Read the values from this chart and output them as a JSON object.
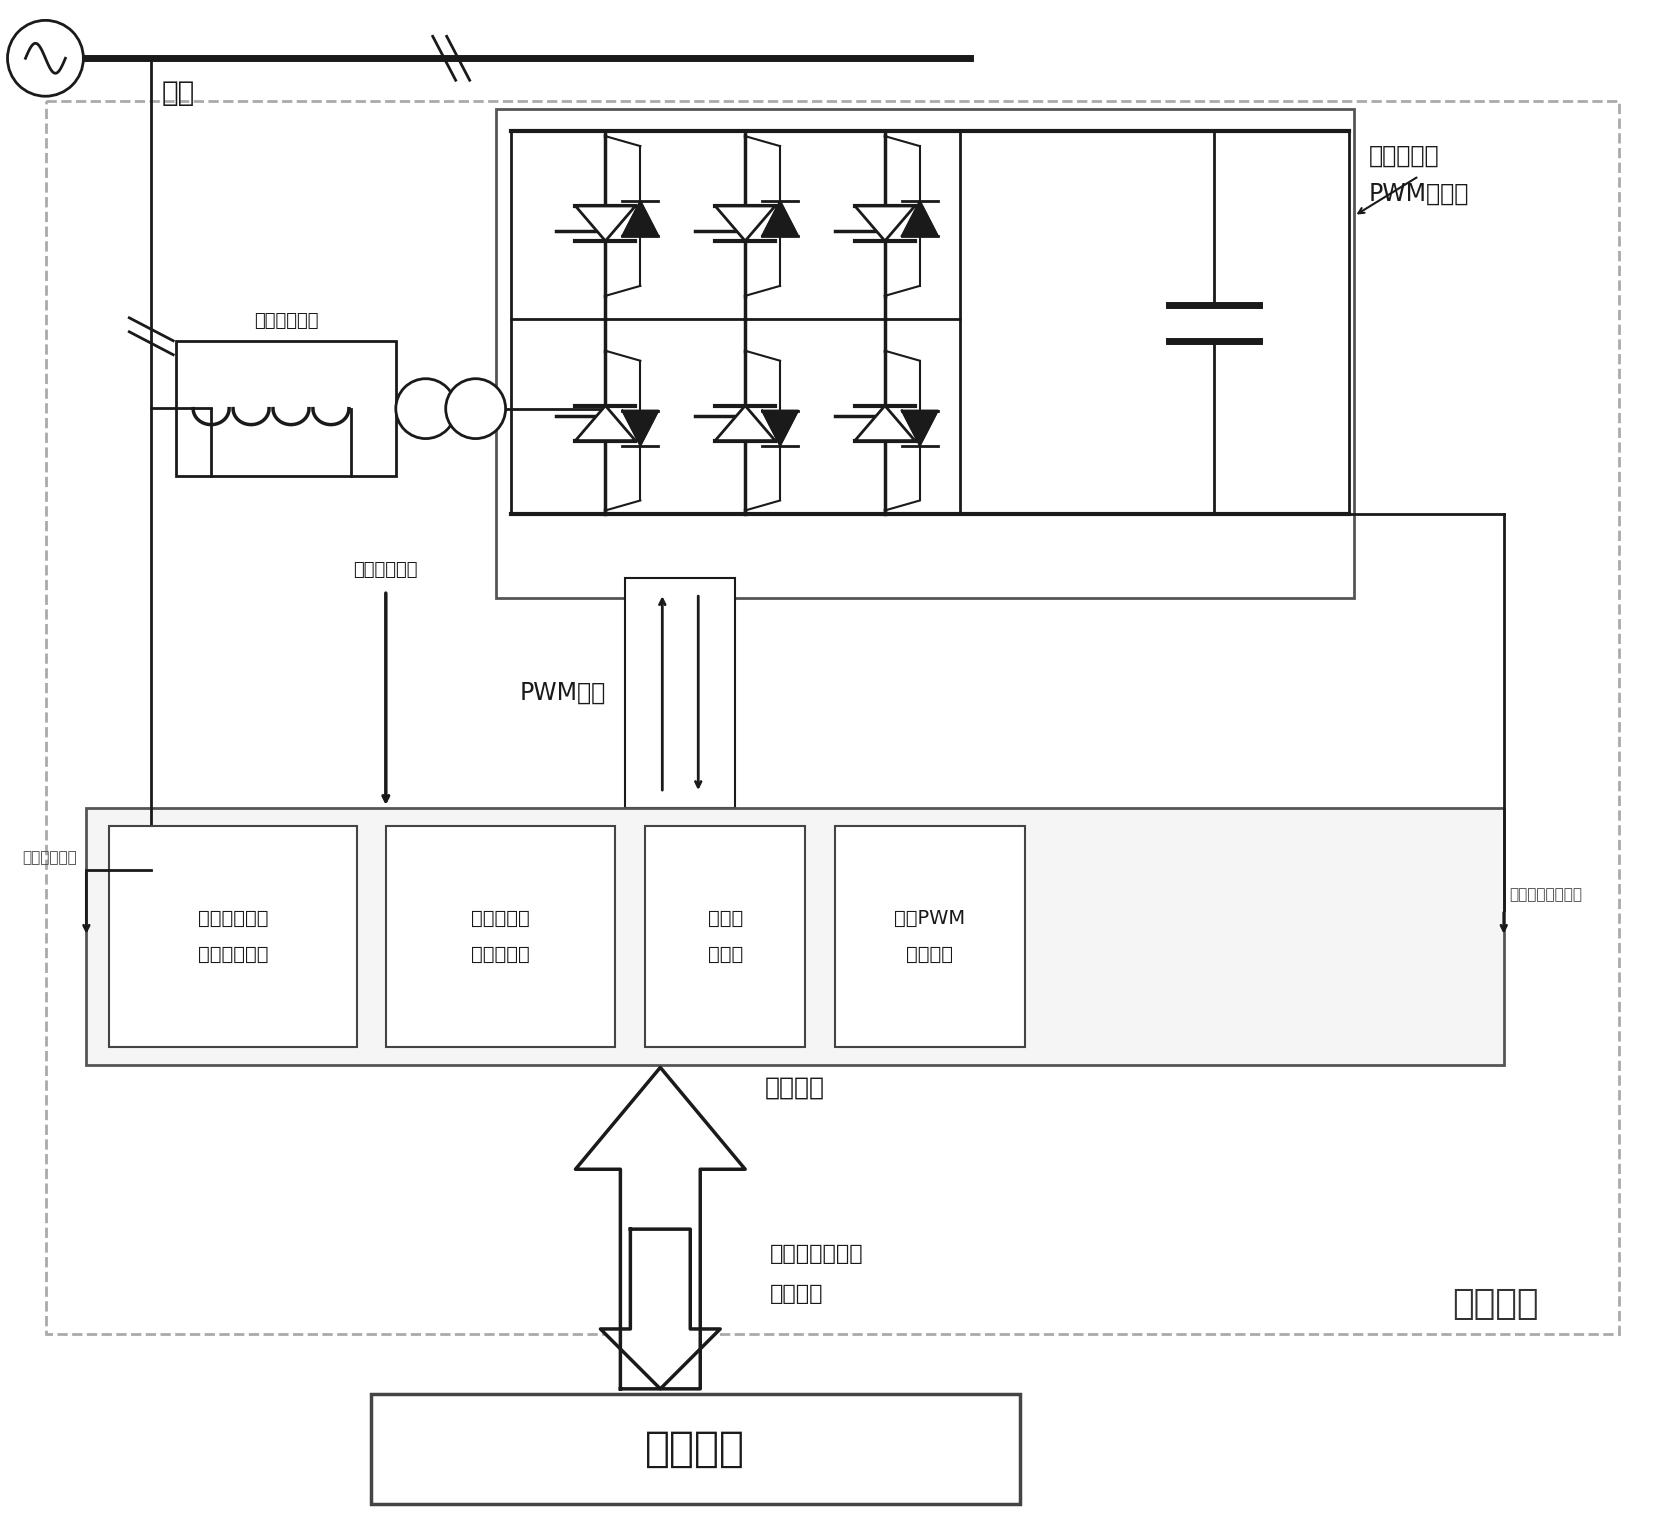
{
  "bg_color": "#ffffff",
  "fig_width": 16.66,
  "fig_height": 15.22,
  "lc": "#1a1a1a",
  "power_unit_label": "功率单元",
  "main_controller_label": "主控制器",
  "slave_controller_label": "从控制器",
  "pwm_label": "PWM信号",
  "grid_label": "电网",
  "three_phase_line1": "三相电压型",
  "three_phase_line2": "PWM变流器",
  "grid_connection_label": "并网连接电路",
  "bridge_current_label": "桥臂电流采集",
  "grid_voltage_label": "网侧电压采集",
  "dc_bus_voltage_label": "直流母线电压采集",
  "comp_line1": "补偿指令电流和",
  "comp_line2": "同步信号",
  "module1_l1": "直流母线电压",
  "module1_l2": "闭环控制模块",
  "module2_l1": "补偿电流闭",
  "module2_l2": "环控制模块",
  "module3_l1": "时基同",
  "module3_l2": "步模块",
  "module4_l1": "混合PWM",
  "module4_l2": "调制模块"
}
